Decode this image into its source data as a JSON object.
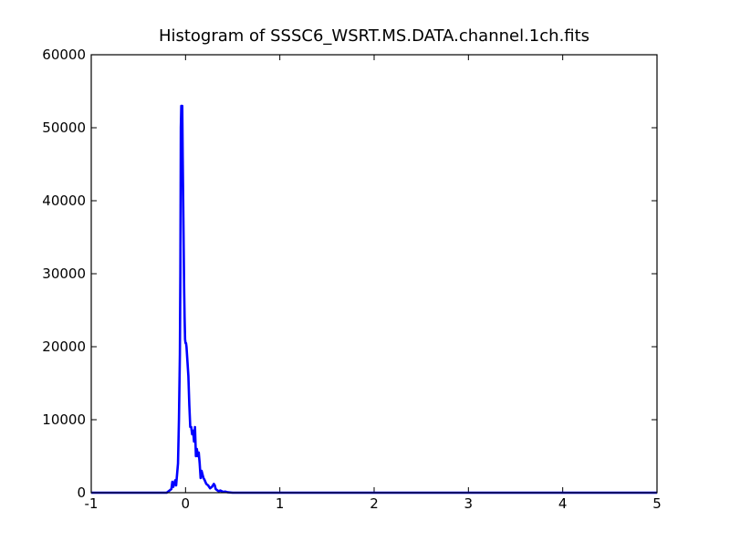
{
  "chart_data": {
    "type": "line",
    "title": "Histogram of SSSC6_WSRT.MS.DATA.channel.1ch.fits",
    "xlabel": "",
    "ylabel": "",
    "xlim": [
      -1,
      5
    ],
    "ylim": [
      0,
      60000
    ],
    "x_ticks": [
      -1,
      0,
      1,
      2,
      3,
      4,
      5
    ],
    "y_ticks": [
      0,
      10000,
      20000,
      30000,
      40000,
      50000,
      60000
    ],
    "grid": false,
    "legend": "none",
    "series_color": "#0000ff",
    "series": [
      {
        "x": [
          -1.0,
          -0.5,
          -0.2,
          -0.17,
          -0.15,
          -0.14,
          -0.13,
          -0.12,
          -0.11,
          -0.1,
          -0.09,
          -0.08,
          -0.07,
          -0.06,
          -0.055,
          -0.05,
          -0.045,
          -0.04,
          -0.035,
          -0.03,
          -0.025,
          -0.02,
          -0.015,
          -0.01,
          -0.005,
          0.0,
          0.005,
          0.01,
          0.02,
          0.03,
          0.04,
          0.05,
          0.06,
          0.07,
          0.08,
          0.09,
          0.1,
          0.11,
          0.12,
          0.13,
          0.14,
          0.15,
          0.16,
          0.17,
          0.18,
          0.19,
          0.2,
          0.22,
          0.24,
          0.26,
          0.28,
          0.3,
          0.31,
          0.32,
          0.33,
          0.34,
          0.35,
          0.37,
          0.4,
          0.42,
          0.45,
          0.5,
          1.0,
          2.0,
          3.0,
          4.0,
          5.0
        ],
        "y": [
          0,
          0,
          0,
          300,
          500,
          1500,
          800,
          1200,
          1700,
          1000,
          2500,
          4000,
          10000,
          19000,
          30000,
          50000,
          53000,
          52000,
          53000,
          46000,
          40000,
          34000,
          28000,
          24000,
          21000,
          20500,
          20500,
          20000,
          18000,
          16000,
          12000,
          9000,
          9000,
          8000,
          8500,
          7000,
          9000,
          5000,
          6000,
          5000,
          5500,
          4000,
          2000,
          3000,
          2500,
          2000,
          1800,
          1200,
          1000,
          600,
          800,
          1200,
          1000,
          500,
          400,
          300,
          200,
          300,
          100,
          150,
          50,
          0,
          0,
          0,
          0,
          0,
          0
        ]
      }
    ]
  }
}
